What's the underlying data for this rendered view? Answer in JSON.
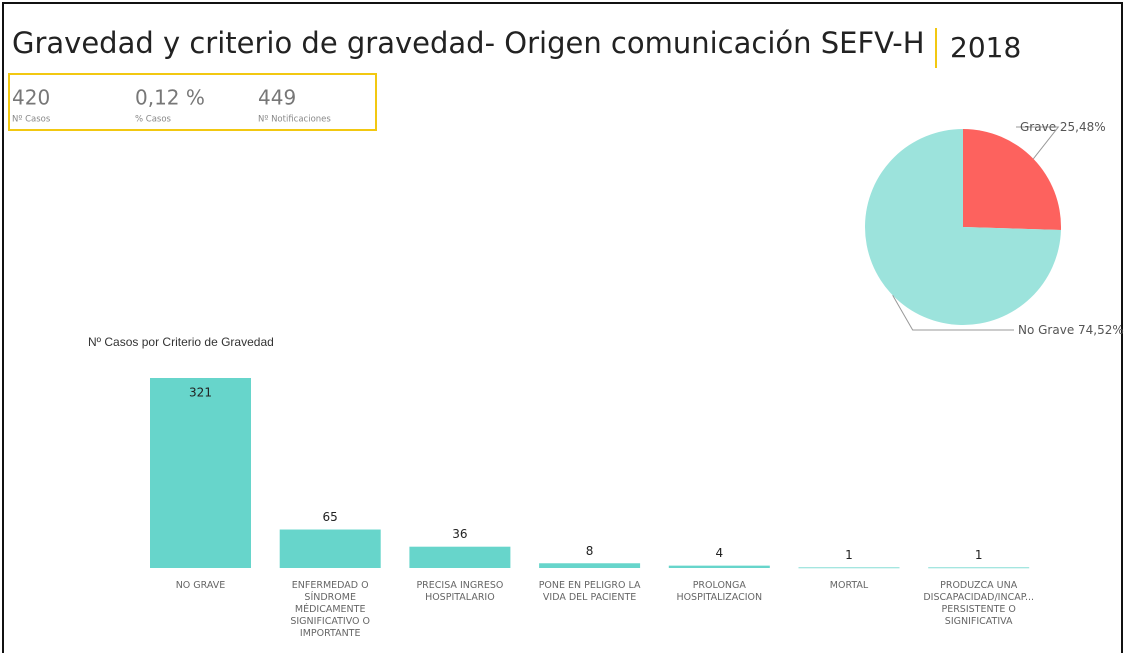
{
  "header": {
    "title": "Gravedad y criterio de gravedad- Origen comunicación SEFV-H",
    "year": "2018"
  },
  "kpis": [
    {
      "value": "420",
      "label": "Nº Casos"
    },
    {
      "value": "0,12 %",
      "label": "% Casos"
    },
    {
      "value": "449",
      "label": "Nº Notificaciones"
    }
  ],
  "chart_data": [
    {
      "type": "pie",
      "categories": [
        "Grave",
        "No Grave"
      ],
      "values": [
        25.48,
        74.52
      ],
      "value_labels": [
        "25,48%",
        "74,52%"
      ],
      "colors": [
        "#fd625e",
        "#9ce3dc"
      ]
    },
    {
      "type": "bar",
      "title": "Nº Casos por Criterio de Gravedad",
      "categories": [
        "NO GRAVE",
        "ENFERMEDAD O SÍNDROME MÉDICAMENTE SIGNIFICATIVO O IMPORTANTE",
        "PRECISA INGRESO HOSPITALARIO",
        "PONE EN PELIGRO LA VIDA DEL PACIENTE",
        "PROLONGA HOSPITALIZACION",
        "MORTAL",
        "PRODUZCA UNA DISCAPACIDAD/INCAP... PERSISTENTE O SIGNIFICATIVA"
      ],
      "values": [
        321,
        65,
        36,
        8,
        4,
        1,
        1
      ],
      "color": "#67d5cb"
    }
  ]
}
